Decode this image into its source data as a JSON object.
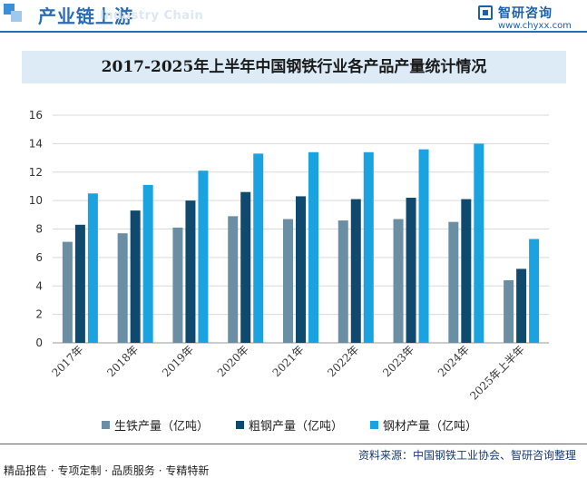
{
  "header": {
    "title": "产业链上游",
    "subtitle": "Industry Chain",
    "brand_name": "智研咨询",
    "brand_url": "www.chyxx.com"
  },
  "colors": {
    "primary": "#2a6db5",
    "series_pig_iron": "#6a8ea3",
    "series_crude_steel": "#0f4a6e",
    "series_steel_products": "#1aa3e0",
    "title_band": "#dcebf6"
  },
  "chart_data": {
    "type": "bar",
    "title": "2017-2025年上半年中国钢铁行业各产品产量统计情况",
    "xlabel": "",
    "ylabel": "",
    "ylim": [
      0,
      16
    ],
    "yticks": [
      0,
      2,
      4,
      6,
      8,
      10,
      12,
      14,
      16
    ],
    "grid": true,
    "legend_position": "bottom",
    "categories": [
      "2017年",
      "2018年",
      "2019年",
      "2020年",
      "2021年",
      "2022年",
      "2023年",
      "2024年",
      "2025年上半年"
    ],
    "series": [
      {
        "name": "生铁产量（亿吨）",
        "values": [
          7.1,
          7.7,
          8.1,
          8.9,
          8.7,
          8.6,
          8.7,
          8.5,
          4.4
        ]
      },
      {
        "name": "粗钢产量（亿吨）",
        "values": [
          8.3,
          9.3,
          10.0,
          10.6,
          10.3,
          10.1,
          10.2,
          10.1,
          5.2
        ]
      },
      {
        "name": "钢材产量（亿吨）",
        "values": [
          10.5,
          11.1,
          12.1,
          13.3,
          13.4,
          13.4,
          13.6,
          14.0,
          7.3
        ]
      }
    ]
  },
  "footer": {
    "source": "资料来源：中国钢铁工业协会、智研咨询整理",
    "tagline": "精品报告 · 专项定制 · 品质服务 · 专精特新"
  }
}
